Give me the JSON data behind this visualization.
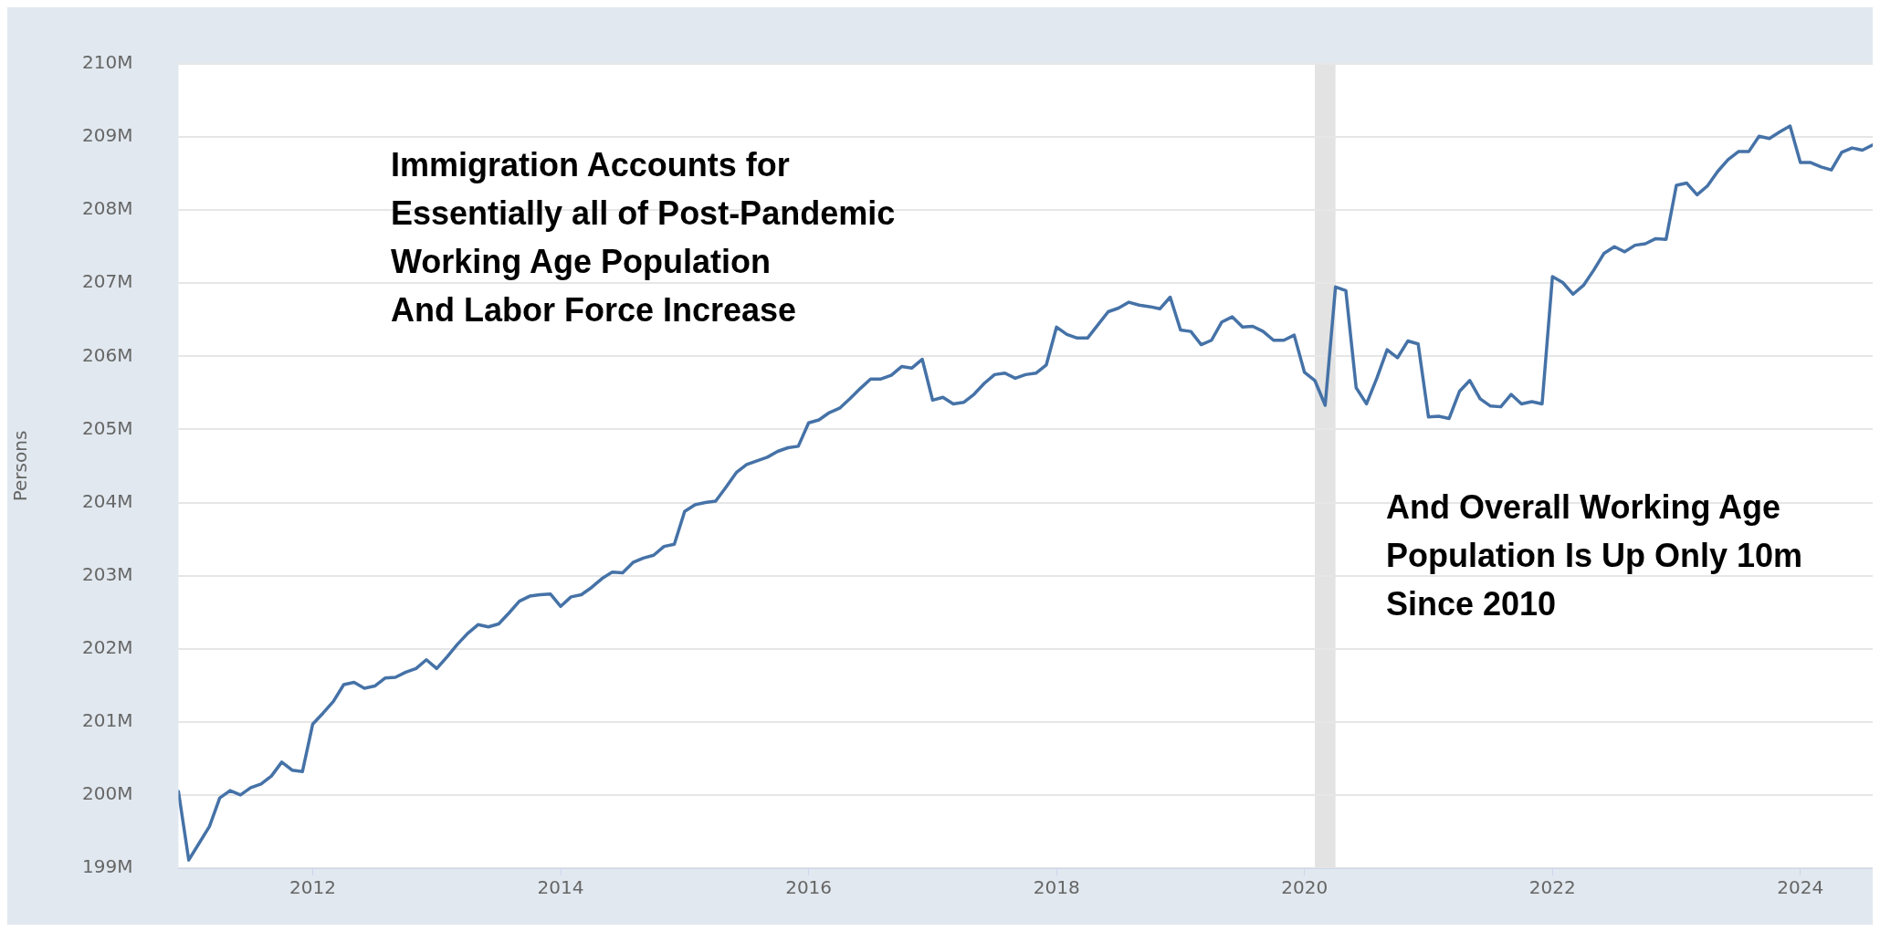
{
  "chart_data": {
    "type": "line",
    "ylabel": "Persons",
    "annotations": [
      "Immigration Accounts for\nEssentially all of Post-Pandemic\nWorking Age Population\nAnd Labor Force Increase",
      "And Overall Working Age\nPopulation Is Up Only 10m\nSince 2010"
    ],
    "x": [
      "2010-12",
      "2011-01",
      "2011-02",
      "2011-03",
      "2011-04",
      "2011-05",
      "2011-06",
      "2011-07",
      "2011-08",
      "2011-09",
      "2011-10",
      "2011-11",
      "2011-12",
      "2012-01",
      "2012-02",
      "2012-03",
      "2012-04",
      "2012-05",
      "2012-06",
      "2012-07",
      "2012-08",
      "2012-09",
      "2012-10",
      "2012-11",
      "2012-12",
      "2013-01",
      "2013-02",
      "2013-03",
      "2013-04",
      "2013-05",
      "2013-06",
      "2013-07",
      "2013-08",
      "2013-09",
      "2013-10",
      "2013-11",
      "2013-12",
      "2014-01",
      "2014-02",
      "2014-03",
      "2014-04",
      "2014-05",
      "2014-06",
      "2014-07",
      "2014-08",
      "2014-09",
      "2014-10",
      "2014-11",
      "2014-12",
      "2015-01",
      "2015-02",
      "2015-03",
      "2015-04",
      "2015-05",
      "2015-06",
      "2015-07",
      "2015-08",
      "2015-09",
      "2015-10",
      "2015-11",
      "2015-12",
      "2016-01",
      "2016-02",
      "2016-03",
      "2016-04",
      "2016-05",
      "2016-06",
      "2016-07",
      "2016-08",
      "2016-09",
      "2016-10",
      "2016-11",
      "2016-12",
      "2017-01",
      "2017-02",
      "2017-03",
      "2017-04",
      "2017-05",
      "2017-06",
      "2017-07",
      "2017-08",
      "2017-09",
      "2017-10",
      "2017-11",
      "2017-12",
      "2018-01",
      "2018-02",
      "2018-03",
      "2018-04",
      "2018-05",
      "2018-06",
      "2018-07",
      "2018-08",
      "2018-09",
      "2018-10",
      "2018-11",
      "2018-12",
      "2019-01",
      "2019-02",
      "2019-03",
      "2019-04",
      "2019-05",
      "2019-06",
      "2019-07",
      "2019-08",
      "2019-09",
      "2019-10",
      "2019-11",
      "2019-12",
      "2020-01",
      "2020-02",
      "2020-03",
      "2020-04",
      "2020-05",
      "2020-06",
      "2020-07",
      "2020-08",
      "2020-09",
      "2020-10",
      "2020-11",
      "2020-12",
      "2021-01",
      "2021-02",
      "2021-03",
      "2021-04",
      "2021-05",
      "2021-06",
      "2021-07",
      "2021-08",
      "2021-09",
      "2021-10",
      "2021-11",
      "2021-12",
      "2022-01",
      "2022-02",
      "2022-03",
      "2022-04",
      "2022-05",
      "2022-06",
      "2022-07",
      "2022-08",
      "2022-09",
      "2022-10",
      "2022-11",
      "2022-12",
      "2023-01",
      "2023-02",
      "2023-03",
      "2023-04",
      "2023-05",
      "2023-06",
      "2023-07",
      "2023-08",
      "2023-09",
      "2023-10",
      "2023-11",
      "2023-12",
      "2024-01",
      "2024-02",
      "2024-03",
      "2024-04",
      "2024-05",
      "2024-06",
      "2024-07",
      "2024-08"
    ],
    "series": [
      {
        "color": "#4572a7",
        "values": [
          200.05,
          199.11,
          199.34,
          199.57,
          199.96,
          200.06,
          200.0,
          200.1,
          200.15,
          200.26,
          200.45,
          200.34,
          200.32,
          200.97,
          201.12,
          201.28,
          201.51,
          201.54,
          201.46,
          201.49,
          201.6,
          201.61,
          201.68,
          201.73,
          201.85,
          201.73,
          201.89,
          202.06,
          202.21,
          202.33,
          202.3,
          202.34,
          202.49,
          202.65,
          202.72,
          202.74,
          202.75,
          202.58,
          202.71,
          202.74,
          202.84,
          202.96,
          203.05,
          203.04,
          203.18,
          203.24,
          203.28,
          203.4,
          203.43,
          203.88,
          203.97,
          204.0,
          204.02,
          204.21,
          204.41,
          204.52,
          204.57,
          204.62,
          204.7,
          204.75,
          204.77,
          205.09,
          205.13,
          205.23,
          205.29,
          205.42,
          205.56,
          205.69,
          205.69,
          205.74,
          205.86,
          205.84,
          205.96,
          205.4,
          205.44,
          205.35,
          205.37,
          205.48,
          205.63,
          205.75,
          205.77,
          205.7,
          205.75,
          205.77,
          205.88,
          206.4,
          206.3,
          206.25,
          206.25,
          206.43,
          206.61,
          206.66,
          206.74,
          206.7,
          206.68,
          206.65,
          206.81,
          206.36,
          206.34,
          206.16,
          206.22,
          206.47,
          206.54,
          206.4,
          206.41,
          206.34,
          206.22,
          206.22,
          206.29,
          205.78,
          205.67,
          205.33,
          206.95,
          206.9,
          205.57,
          205.35,
          205.7,
          206.09,
          205.98,
          206.21,
          206.17,
          205.17,
          205.18,
          205.15,
          205.52,
          205.67,
          205.42,
          205.32,
          205.31,
          205.48,
          205.35,
          205.38,
          205.35,
          207.09,
          207.01,
          206.85,
          206.97,
          207.18,
          207.41,
          207.5,
          207.43,
          207.52,
          207.54,
          207.61,
          207.6,
          208.34,
          208.37,
          208.21,
          208.33,
          208.53,
          208.69,
          208.8,
          208.8,
          209.01,
          208.98,
          209.07,
          209.15,
          208.65,
          208.65,
          208.59,
          208.55,
          208.79,
          208.85,
          208.82,
          208.89
        ]
      }
    ],
    "xlim": [
      "2010-12",
      "2024-08"
    ],
    "xticks": [
      "2012",
      "2014",
      "2016",
      "2018",
      "2020",
      "2022",
      "2024"
    ],
    "ylim": [
      199,
      210
    ],
    "yticks": [
      {
        "value": 199,
        "label": "199M"
      },
      {
        "value": 200,
        "label": "200M"
      },
      {
        "value": 201,
        "label": "201M"
      },
      {
        "value": 202,
        "label": "202M"
      },
      {
        "value": 203,
        "label": "203M"
      },
      {
        "value": 204,
        "label": "204M"
      },
      {
        "value": 205,
        "label": "205M"
      },
      {
        "value": 206,
        "label": "206M"
      },
      {
        "value": 207,
        "label": "207M"
      },
      {
        "value": 208,
        "label": "208M"
      },
      {
        "value": 209,
        "label": "209M"
      },
      {
        "value": 210,
        "label": "210M"
      }
    ],
    "bands": [
      {
        "axis": "x",
        "from": "2020-02",
        "to": "2020-04",
        "color": "#e3e3e3"
      }
    ],
    "grid": "y",
    "legend": false,
    "marker": "none",
    "line_style": "solid"
  }
}
